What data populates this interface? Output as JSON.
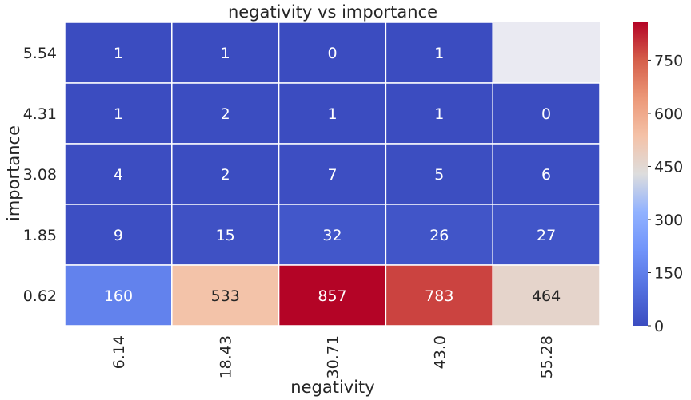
{
  "chart_data": {
    "type": "heatmap",
    "title": "negativity vs importance",
    "xlabel": "negativity",
    "ylabel": "importance",
    "x_categories": [
      "6.14",
      "18.43",
      "30.71",
      "43.0",
      "55.28"
    ],
    "y_categories": [
      "5.54",
      "4.31",
      "3.08",
      "1.85",
      "0.62"
    ],
    "values": [
      [
        1,
        1,
        0,
        1,
        null
      ],
      [
        1,
        2,
        1,
        1,
        0
      ],
      [
        4,
        2,
        7,
        5,
        6
      ],
      [
        9,
        15,
        32,
        26,
        27
      ],
      [
        160,
        533,
        857,
        783,
        464
      ]
    ],
    "colorbar": {
      "ticks": [
        "0",
        "150",
        "300",
        "450",
        "600",
        "750"
      ],
      "min": 0,
      "max": 857,
      "colormap": "coolwarm"
    },
    "missing_color": "#eaeaf2",
    "grid": false
  }
}
